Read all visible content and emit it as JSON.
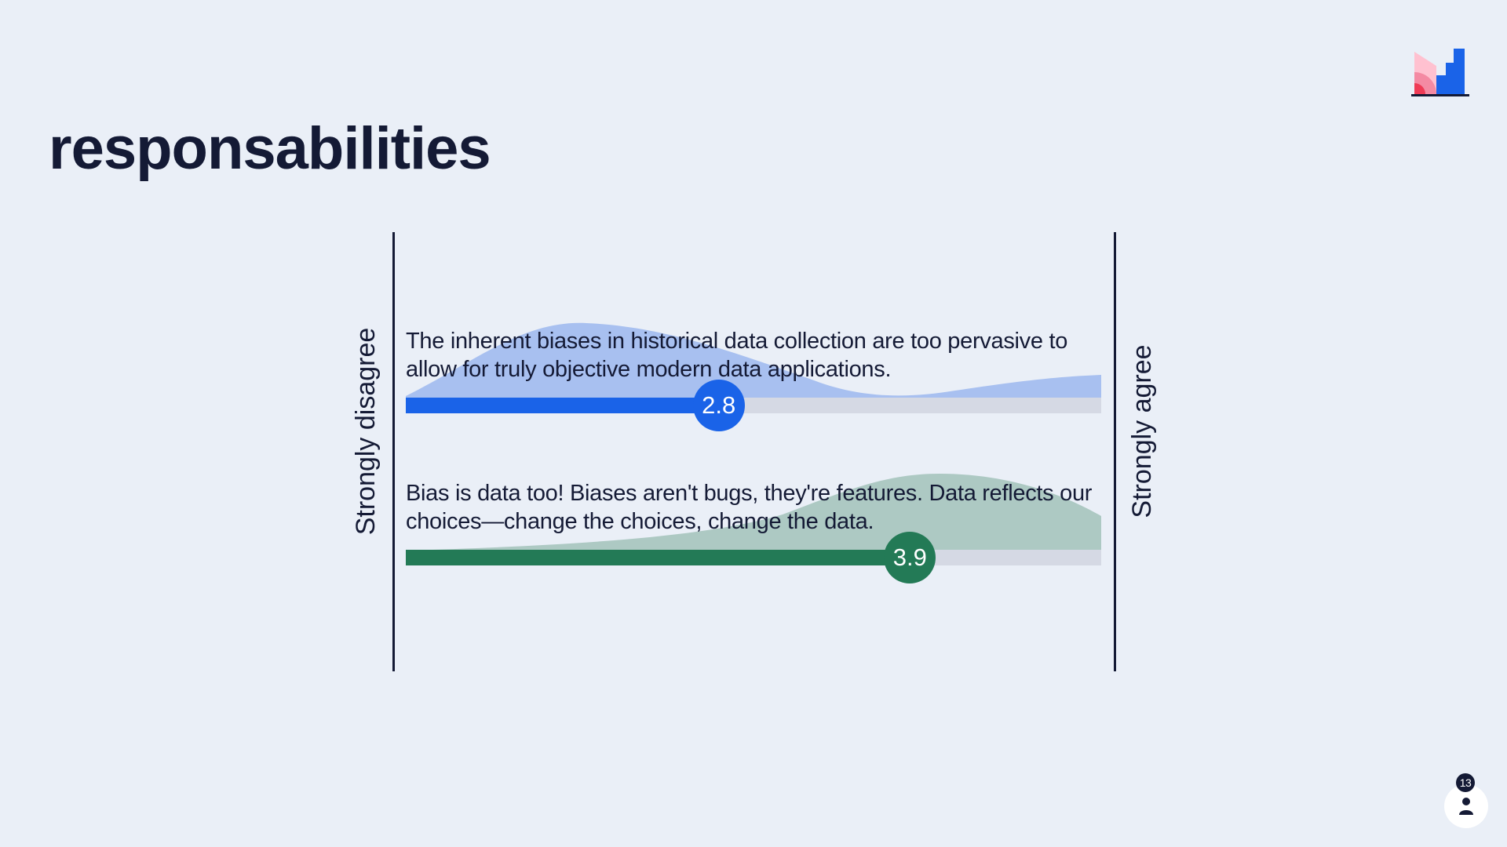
{
  "slide": {
    "title": "responsabilities"
  },
  "scale": {
    "left_label": "Strongly disagree",
    "right_label": "Strongly agree",
    "min": 1,
    "max": 5
  },
  "statements": [
    {
      "text": "The inherent biases in historical data collection are too pervasive to allow for truly objective modern data applications.",
      "average": "2.8",
      "value": 2.8,
      "color": "#1a63e8",
      "area_color": "#a8c0f0"
    },
    {
      "text": "Bias is data too! Biases aren't bugs, they're features. Data reflects our choices—change the choices, change the data.",
      "average": "3.9",
      "value": 3.9,
      "color": "#237a56",
      "area_color": "#adc9c3"
    }
  ],
  "participants": {
    "count": "13",
    "icon": "person-icon"
  },
  "logo": {
    "icon": "brand-logo",
    "colors": [
      "#ffc1d0",
      "#f5607a",
      "#1a63e8"
    ]
  }
}
